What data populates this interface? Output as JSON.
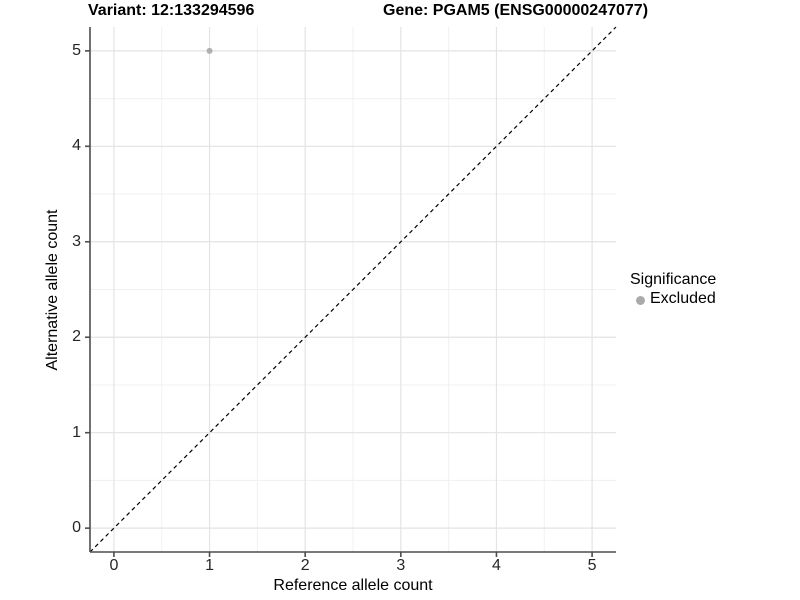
{
  "titles": {
    "variant": "Variant: 12:133294596",
    "gene": "Gene: PGAM5 (ENSG00000247077)"
  },
  "chart_data": {
    "type": "scatter",
    "title_left": "Variant: 12:133294596",
    "title_right": "Gene: PGAM5 (ENSG00000247077)",
    "xlabel": "Reference allele count",
    "ylabel": "Alternative allele count",
    "x_ticks": [
      0,
      1,
      2,
      3,
      4,
      5
    ],
    "y_ticks": [
      0,
      1,
      2,
      3,
      4,
      5
    ],
    "xlim": [
      -0.25,
      5.25
    ],
    "ylim": [
      -0.25,
      5.25
    ],
    "grid": {
      "major": true,
      "minor": true
    },
    "points": [
      {
        "x": 1,
        "y": 5,
        "significance": "Excluded"
      }
    ],
    "reference_line": {
      "kind": "identity y=x",
      "style": "dashed",
      "color": "#000000"
    },
    "legend": {
      "position": "right",
      "title": "Significance",
      "items": [
        {
          "label": "Excluded",
          "color": "#aaaaaa"
        }
      ]
    }
  },
  "colors": {
    "background": "#ffffff",
    "grid_major": "#e3e3e3",
    "grid_minor": "#f0f0f0",
    "axis_line": "#4d4d4d",
    "diagonal_line": "#000000",
    "point_excluded": "#b0b0b0",
    "text": "#000000"
  }
}
